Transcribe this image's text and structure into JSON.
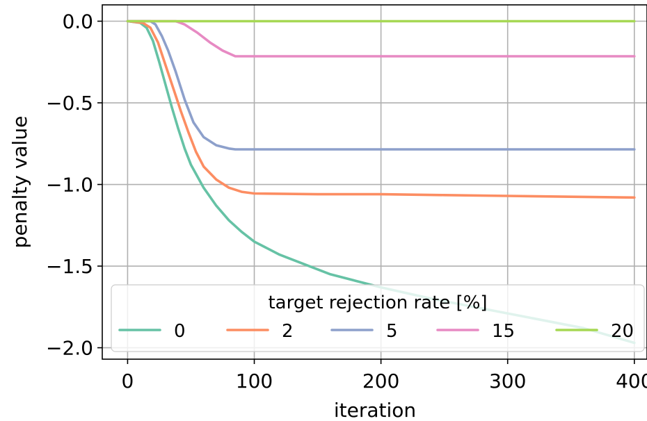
{
  "chart_data": {
    "type": "line",
    "title": "",
    "xlabel": "iteration",
    "ylabel": "penalty value",
    "xlim": [
      -20,
      410
    ],
    "ylim": [
      -2.07,
      0.1
    ],
    "x_ticks": [
      0,
      100,
      200,
      300,
      400
    ],
    "x_tick_labels": [
      "0",
      "100",
      "200",
      "300",
      "400"
    ],
    "y_ticks": [
      0.0,
      -0.5,
      -1.0,
      -1.5,
      -2.0
    ],
    "y_tick_labels": [
      "0.0",
      "−0.5",
      "−1.0",
      "−1.5",
      "−2.0"
    ],
    "grid": true,
    "legend": {
      "title": "target rejection rate [%]",
      "placement": "lower-center",
      "columns": 5
    },
    "series": [
      {
        "name": "0",
        "color": "#66c2a5",
        "points": [
          [
            0,
            0
          ],
          [
            10,
            -0.01
          ],
          [
            15,
            -0.04
          ],
          [
            20,
            -0.12
          ],
          [
            25,
            -0.25
          ],
          [
            30,
            -0.39
          ],
          [
            35,
            -0.53
          ],
          [
            40,
            -0.66
          ],
          [
            45,
            -0.78
          ],
          [
            50,
            -0.88
          ],
          [
            60,
            -1.02
          ],
          [
            70,
            -1.13
          ],
          [
            80,
            -1.22
          ],
          [
            90,
            -1.29
          ],
          [
            100,
            -1.35
          ],
          [
            110,
            -1.39
          ],
          [
            120,
            -1.43
          ],
          [
            140,
            -1.49
          ],
          [
            160,
            -1.55
          ],
          [
            180,
            -1.59
          ],
          [
            200,
            -1.63
          ],
          [
            240,
            -1.7
          ],
          [
            280,
            -1.76
          ],
          [
            320,
            -1.82
          ],
          [
            360,
            -1.88
          ],
          [
            400,
            -1.97
          ]
        ]
      },
      {
        "name": "2",
        "color": "#fc8d62",
        "points": [
          [
            0,
            0
          ],
          [
            12,
            -0.01
          ],
          [
            18,
            -0.04
          ],
          [
            24,
            -0.13
          ],
          [
            30,
            -0.27
          ],
          [
            36,
            -0.41
          ],
          [
            42,
            -0.55
          ],
          [
            48,
            -0.68
          ],
          [
            54,
            -0.8
          ],
          [
            60,
            -0.89
          ],
          [
            70,
            -0.97
          ],
          [
            80,
            -1.02
          ],
          [
            90,
            -1.045
          ],
          [
            100,
            -1.055
          ],
          [
            150,
            -1.06
          ],
          [
            200,
            -1.06
          ],
          [
            250,
            -1.065
          ],
          [
            300,
            -1.07
          ],
          [
            350,
            -1.075
          ],
          [
            400,
            -1.08
          ]
        ]
      },
      {
        "name": "5",
        "color": "#8da0cb",
        "points": [
          [
            0,
            0
          ],
          [
            18,
            0
          ],
          [
            22,
            -0.02
          ],
          [
            27,
            -0.09
          ],
          [
            32,
            -0.18
          ],
          [
            38,
            -0.31
          ],
          [
            45,
            -0.48
          ],
          [
            52,
            -0.62
          ],
          [
            60,
            -0.71
          ],
          [
            70,
            -0.76
          ],
          [
            80,
            -0.78
          ],
          [
            85,
            -0.785
          ],
          [
            150,
            -0.785
          ],
          [
            250,
            -0.785
          ],
          [
            400,
            -0.785
          ]
        ]
      },
      {
        "name": "15",
        "color": "#e78ac3",
        "points": [
          [
            0,
            0
          ],
          [
            38,
            0
          ],
          [
            45,
            -0.02
          ],
          [
            55,
            -0.07
          ],
          [
            65,
            -0.13
          ],
          [
            75,
            -0.18
          ],
          [
            85,
            -0.215
          ],
          [
            150,
            -0.215
          ],
          [
            250,
            -0.215
          ],
          [
            400,
            -0.215
          ]
        ]
      },
      {
        "name": "20",
        "color": "#a6d854",
        "points": [
          [
            0,
            0
          ],
          [
            100,
            0
          ],
          [
            200,
            0
          ],
          [
            300,
            0
          ],
          [
            400,
            0
          ]
        ]
      }
    ]
  }
}
